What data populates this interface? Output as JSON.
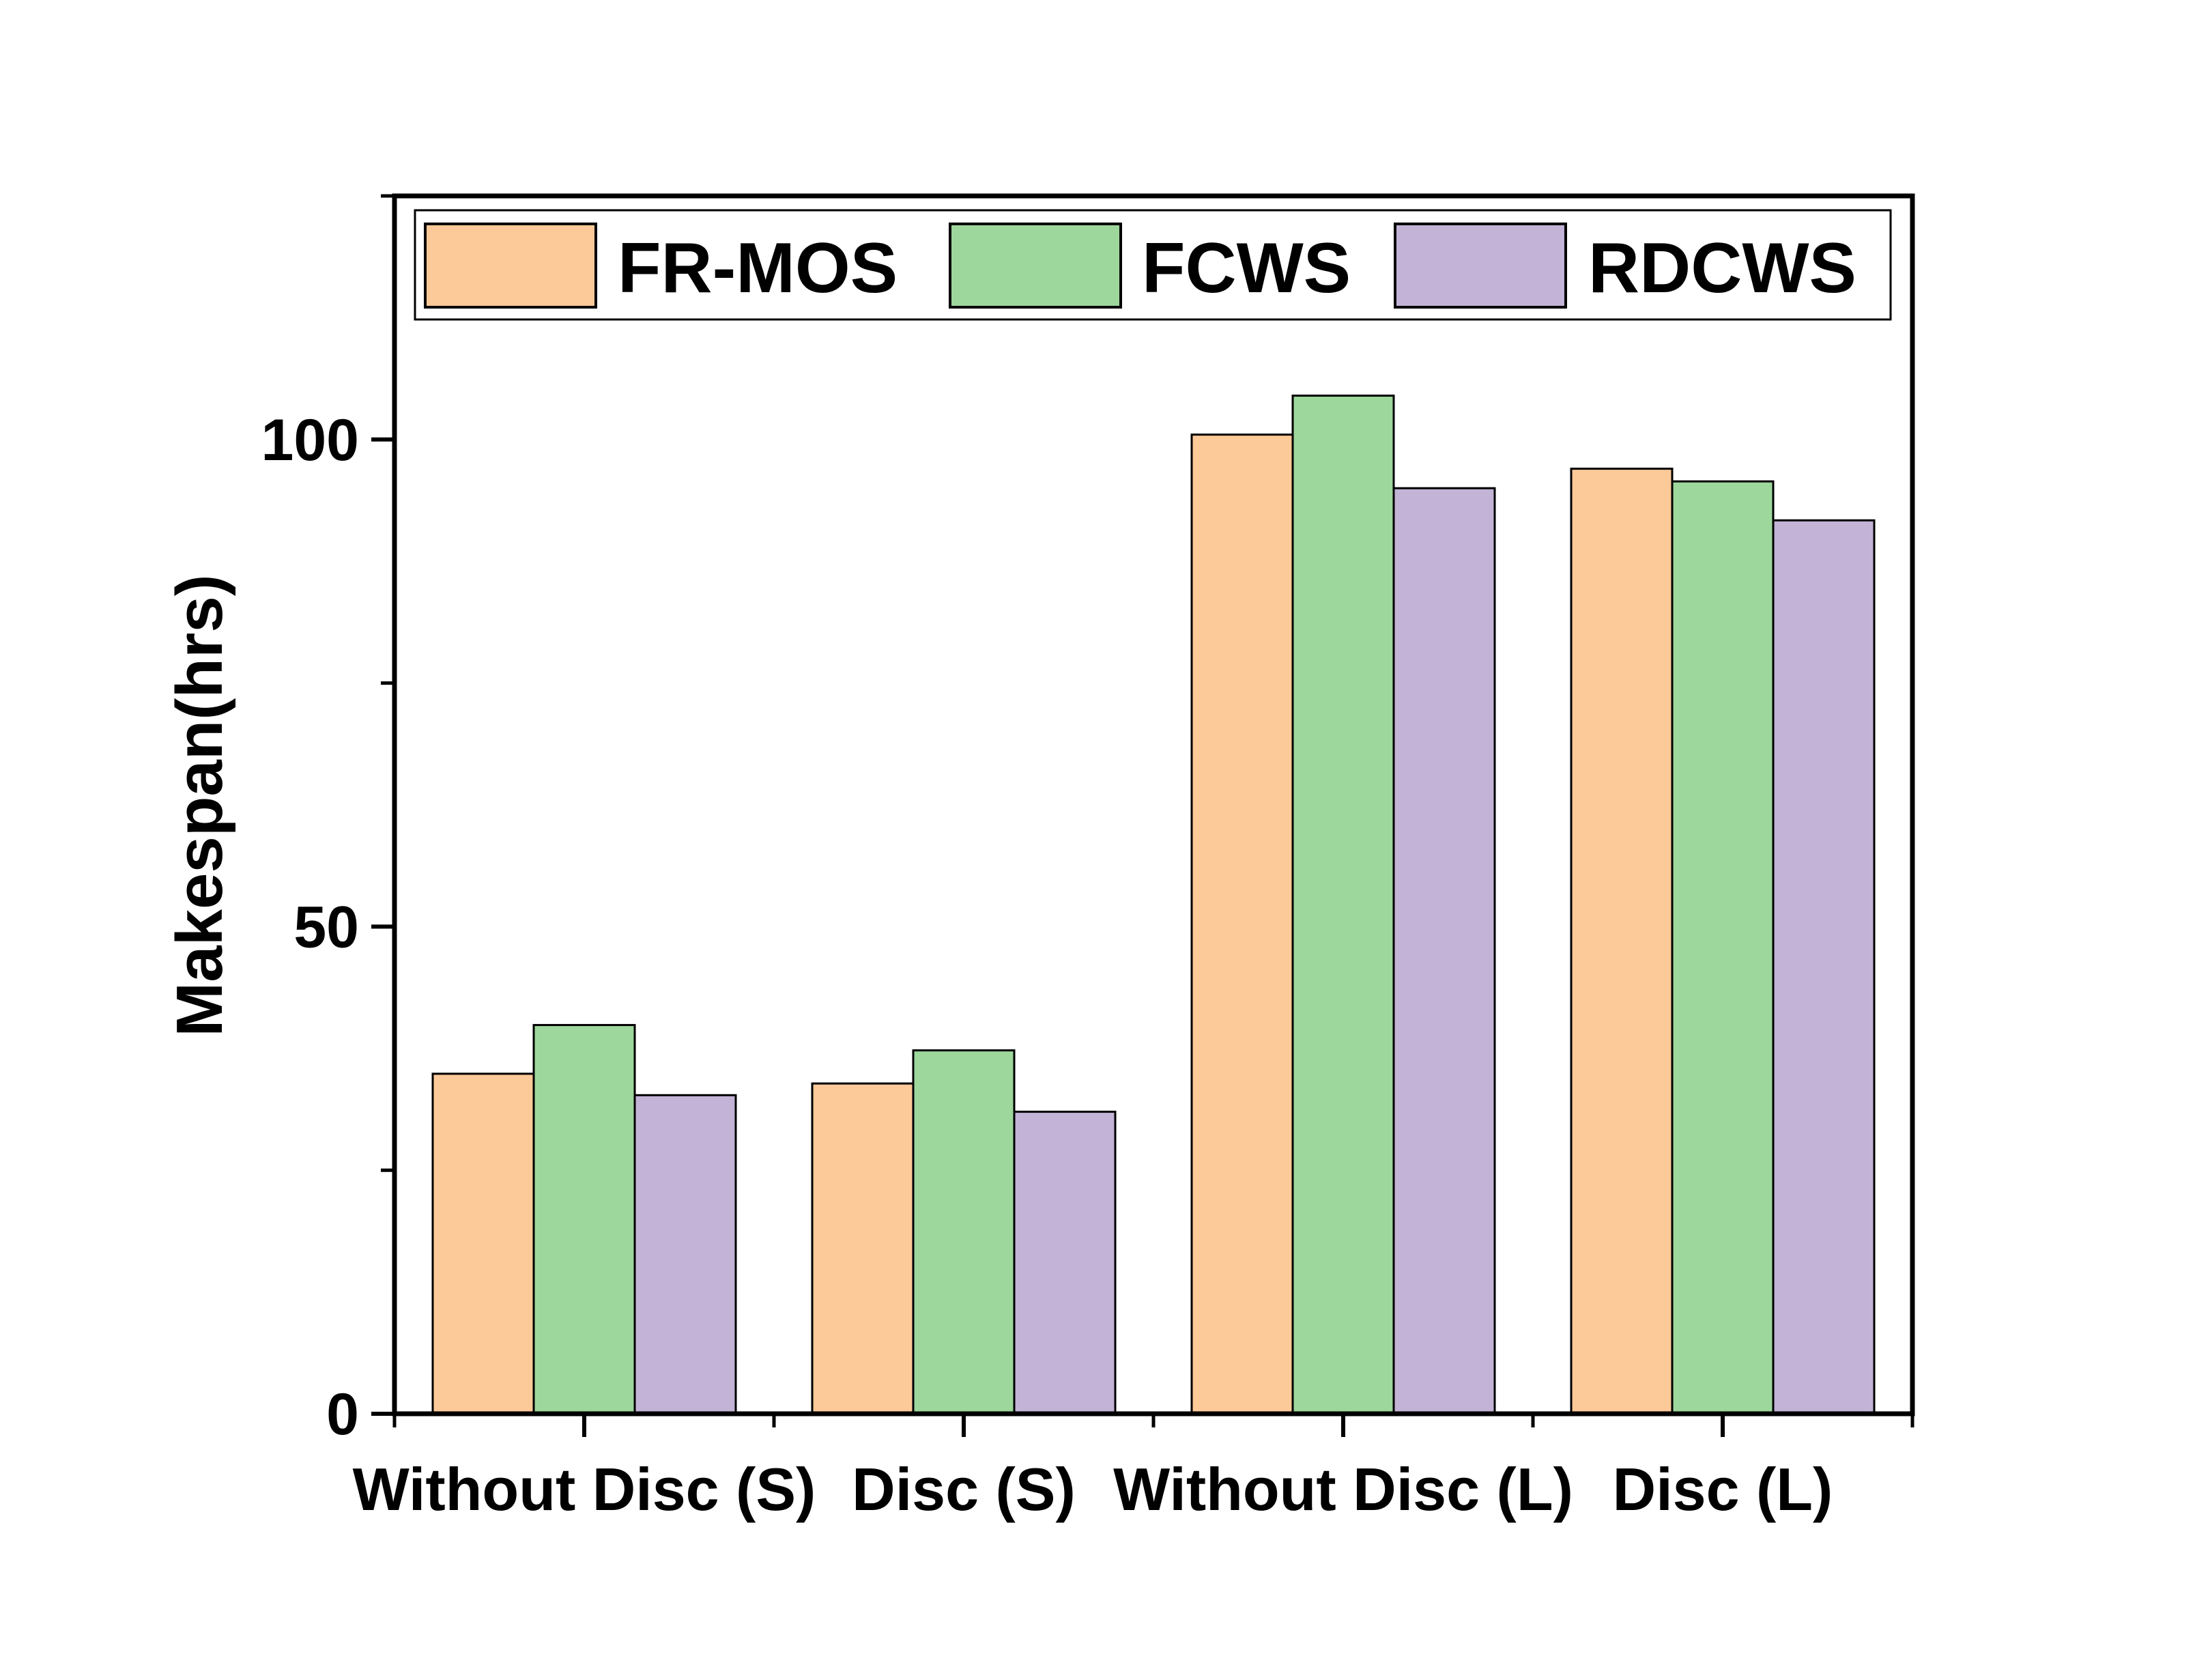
{
  "chart_data": {
    "type": "bar",
    "title": "",
    "xlabel": "",
    "ylabel": "Makespan(hrs)",
    "ylim": [
      0,
      125
    ],
    "yticks": [
      0,
      50,
      100
    ],
    "grid": false,
    "legend_position": "top",
    "categories": [
      "Without Disc (S)",
      "Disc (S)",
      "Without Disc (L)",
      "Disc (L)"
    ],
    "series": [
      {
        "name": "FR-MOS",
        "color": "#FCC998",
        "values": [
          34.9,
          33.9,
          100.5,
          97.0
        ]
      },
      {
        "name": "FCWS",
        "color": "#9DD79C",
        "values": [
          39.9,
          37.3,
          104.5,
          95.7
        ]
      },
      {
        "name": "RDCWS",
        "color": "#C3B3D6",
        "values": [
          32.7,
          31.0,
          95.0,
          91.7
        ]
      }
    ]
  }
}
